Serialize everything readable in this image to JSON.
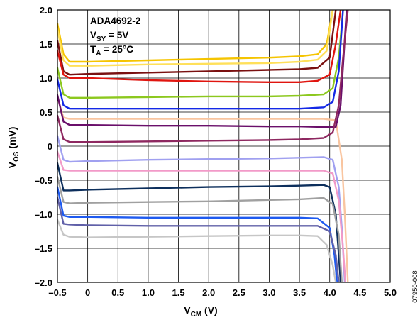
{
  "chart_data": {
    "type": "line",
    "legend_box": {
      "part": "ADA4692-2",
      "supply_main": "V",
      "supply_sub": "SY",
      "supply_value": " = 5V",
      "temp_main": "T",
      "temp_sub": "A",
      "temp_value": " = 25°C"
    },
    "xlabel": {
      "main": "V",
      "sub": "CM",
      "unit": " (V)"
    },
    "ylabel": {
      "main": "V",
      "sub": "OS",
      "unit": " (mV)"
    },
    "xlim": [
      -0.5,
      5.0
    ],
    "ylim": [
      -2.0,
      2.0
    ],
    "x_ticks": [
      "–0.5",
      "0",
      "0.5",
      "1.0",
      "1.5",
      "2.0",
      "2.5",
      "3.0",
      "3.5",
      "4.0",
      "4.5",
      "5.0"
    ],
    "y_ticks": [
      "2.0",
      "1.5",
      "1.0",
      "0.5",
      "0",
      "–0.5",
      "–1.0",
      "–1.5",
      "–2.0"
    ],
    "grid": true,
    "figure_id": "07950-008",
    "series": [
      {
        "color": "#f5c400",
        "points": [
          [
            -0.5,
            1.8
          ],
          [
            -0.4,
            1.35
          ],
          [
            -0.3,
            1.24
          ],
          [
            0,
            1.24
          ],
          [
            1,
            1.26
          ],
          [
            2,
            1.28
          ],
          [
            3,
            1.3
          ],
          [
            3.5,
            1.32
          ],
          [
            3.8,
            1.35
          ],
          [
            3.95,
            1.5
          ],
          [
            4.05,
            2.0
          ]
        ]
      },
      {
        "color": "#ffe05a",
        "points": [
          [
            -0.5,
            1.72
          ],
          [
            -0.4,
            1.26
          ],
          [
            -0.3,
            1.18
          ],
          [
            0,
            1.18
          ],
          [
            1,
            1.2
          ],
          [
            2,
            1.21
          ],
          [
            3,
            1.22
          ],
          [
            3.5,
            1.24
          ],
          [
            3.8,
            1.27
          ],
          [
            3.95,
            1.4
          ],
          [
            4.05,
            2.0
          ]
        ]
      },
      {
        "color": "#7a1010",
        "points": [
          [
            -0.5,
            1.55
          ],
          [
            -0.4,
            1.1
          ],
          [
            -0.3,
            1.05
          ],
          [
            0,
            1.06
          ],
          [
            1,
            1.08
          ],
          [
            2,
            1.1
          ],
          [
            3,
            1.12
          ],
          [
            3.5,
            1.13
          ],
          [
            3.8,
            1.15
          ],
          [
            4.0,
            1.3
          ],
          [
            4.1,
            2.0
          ]
        ]
      },
      {
        "color": "#e0150f",
        "points": [
          [
            -0.5,
            1.4
          ],
          [
            -0.4,
            1.05
          ],
          [
            -0.3,
            1.0
          ],
          [
            0,
            1.0
          ],
          [
            1,
            0.97
          ],
          [
            2,
            0.95
          ],
          [
            3,
            0.94
          ],
          [
            3.5,
            0.94
          ],
          [
            3.8,
            0.96
          ],
          [
            4.0,
            1.05
          ],
          [
            4.1,
            1.5
          ],
          [
            4.18,
            2.0
          ]
        ]
      },
      {
        "color": "#8cc81e",
        "points": [
          [
            -0.5,
            1.15
          ],
          [
            -0.4,
            0.76
          ],
          [
            -0.3,
            0.71
          ],
          [
            0,
            0.71
          ],
          [
            1,
            0.72
          ],
          [
            2,
            0.73
          ],
          [
            3,
            0.73
          ],
          [
            3.5,
            0.74
          ],
          [
            3.9,
            0.76
          ],
          [
            4.05,
            0.85
          ],
          [
            4.15,
            1.3
          ],
          [
            4.22,
            2.0
          ]
        ]
      },
      {
        "color": "#1429e6",
        "points": [
          [
            -0.5,
            0.98
          ],
          [
            -0.4,
            0.6
          ],
          [
            -0.3,
            0.55
          ],
          [
            0,
            0.55
          ],
          [
            1,
            0.55
          ],
          [
            2,
            0.55
          ],
          [
            3,
            0.55
          ],
          [
            3.5,
            0.55
          ],
          [
            3.9,
            0.57
          ],
          [
            4.05,
            0.65
          ],
          [
            4.15,
            1.1
          ],
          [
            4.22,
            2.0
          ]
        ]
      },
      {
        "color": "#f9c5a0",
        "points": [
          [
            -0.5,
            0.72
          ],
          [
            -0.4,
            0.42
          ],
          [
            -0.3,
            0.4
          ],
          [
            0,
            0.4
          ],
          [
            1,
            0.4
          ],
          [
            2,
            0.4
          ],
          [
            3,
            0.4
          ],
          [
            3.5,
            0.4
          ],
          [
            3.9,
            0.4
          ],
          [
            4.1,
            0.38
          ],
          [
            4.2,
            -0.2
          ],
          [
            4.25,
            -1.0
          ],
          [
            4.3,
            -2.0
          ]
        ]
      },
      {
        "color": "#6a0f6a",
        "points": [
          [
            -0.5,
            0.75
          ],
          [
            -0.4,
            0.36
          ],
          [
            -0.3,
            0.31
          ],
          [
            0,
            0.31
          ],
          [
            1,
            0.3
          ],
          [
            2,
            0.3
          ],
          [
            3,
            0.29
          ],
          [
            3.5,
            0.29
          ],
          [
            3.9,
            0.28
          ],
          [
            4.1,
            0.28
          ],
          [
            4.18,
            0.6
          ],
          [
            4.23,
            1.3
          ],
          [
            4.28,
            2.0
          ]
        ]
      },
      {
        "color": "#8e2860",
        "points": [
          [
            -0.5,
            0.45
          ],
          [
            -0.4,
            0.1
          ],
          [
            -0.3,
            0.06
          ],
          [
            0,
            0.06
          ],
          [
            1,
            0.07
          ],
          [
            2,
            0.08
          ],
          [
            3,
            0.09
          ],
          [
            3.5,
            0.1
          ],
          [
            3.9,
            0.12
          ],
          [
            4.05,
            0.2
          ],
          [
            4.15,
            0.6
          ],
          [
            4.22,
            1.3
          ],
          [
            4.3,
            2.0
          ]
        ]
      },
      {
        "color": "#a0a0f0",
        "points": [
          [
            -0.5,
            0.15
          ],
          [
            -0.4,
            -0.2
          ],
          [
            -0.3,
            -0.23
          ],
          [
            0,
            -0.22
          ],
          [
            1,
            -0.2
          ],
          [
            2,
            -0.19
          ],
          [
            3,
            -0.18
          ],
          [
            3.5,
            -0.17
          ],
          [
            3.9,
            -0.16
          ],
          [
            4.05,
            -0.2
          ],
          [
            4.15,
            -0.6
          ],
          [
            4.2,
            -1.2
          ],
          [
            4.25,
            -2.0
          ]
        ]
      },
      {
        "color": "#f29ac8",
        "points": [
          [
            -0.5,
            -0.08
          ],
          [
            -0.4,
            -0.35
          ],
          [
            -0.3,
            -0.36
          ],
          [
            0,
            -0.36
          ],
          [
            1,
            -0.36
          ],
          [
            2,
            -0.36
          ],
          [
            3,
            -0.36
          ],
          [
            3.5,
            -0.36
          ],
          [
            3.9,
            -0.36
          ],
          [
            4.05,
            -0.4
          ],
          [
            4.15,
            -0.8
          ],
          [
            4.22,
            -1.5
          ],
          [
            4.26,
            -2.0
          ]
        ]
      },
      {
        "color": "#0d2f5c",
        "points": [
          [
            -0.5,
            -0.25
          ],
          [
            -0.4,
            -0.65
          ],
          [
            -0.3,
            -0.65
          ],
          [
            0,
            -0.64
          ],
          [
            1,
            -0.62
          ],
          [
            2,
            -0.6
          ],
          [
            3,
            -0.59
          ],
          [
            3.5,
            -0.58
          ],
          [
            3.9,
            -0.57
          ],
          [
            4.0,
            -0.6
          ],
          [
            4.1,
            -1.0
          ],
          [
            4.15,
            -1.6
          ],
          [
            4.18,
            -2.0
          ]
        ]
      },
      {
        "color": "#a0a0a0",
        "points": [
          [
            -0.5,
            -0.45
          ],
          [
            -0.4,
            -0.82
          ],
          [
            -0.3,
            -0.84
          ],
          [
            0,
            -0.83
          ],
          [
            1,
            -0.82
          ],
          [
            2,
            -0.81
          ],
          [
            3,
            -0.79
          ],
          [
            3.5,
            -0.78
          ],
          [
            3.9,
            -0.76
          ],
          [
            4.05,
            -0.85
          ],
          [
            4.15,
            -1.3
          ],
          [
            4.2,
            -2.0
          ]
        ]
      },
      {
        "color": "#1e5af0",
        "points": [
          [
            -0.5,
            -0.6
          ],
          [
            -0.4,
            -1.02
          ],
          [
            -0.3,
            -1.04
          ],
          [
            0,
            -1.04
          ],
          [
            1,
            -1.05
          ],
          [
            2,
            -1.05
          ],
          [
            3,
            -1.05
          ],
          [
            3.5,
            -1.05
          ],
          [
            3.8,
            -1.06
          ],
          [
            4.0,
            -1.2
          ],
          [
            4.08,
            -1.6
          ],
          [
            4.12,
            -2.0
          ]
        ]
      },
      {
        "color": "#6060a8",
        "points": [
          [
            -0.5,
            -0.75
          ],
          [
            -0.4,
            -1.14
          ],
          [
            -0.3,
            -1.15
          ],
          [
            0,
            -1.16
          ],
          [
            1,
            -1.17
          ],
          [
            2,
            -1.17
          ],
          [
            3,
            -1.17
          ],
          [
            3.5,
            -1.17
          ],
          [
            3.8,
            -1.17
          ],
          [
            4.0,
            -1.25
          ],
          [
            4.1,
            -1.6
          ],
          [
            4.15,
            -2.0
          ]
        ]
      },
      {
        "color": "#c6c6c6",
        "points": [
          [
            -0.5,
            -1.08
          ],
          [
            -0.4,
            -1.3
          ],
          [
            -0.3,
            -1.33
          ],
          [
            0,
            -1.34
          ],
          [
            1,
            -1.33
          ],
          [
            2,
            -1.32
          ],
          [
            3,
            -1.31
          ],
          [
            3.5,
            -1.31
          ],
          [
            3.8,
            -1.32
          ],
          [
            3.95,
            -1.45
          ],
          [
            4.05,
            -1.75
          ],
          [
            4.1,
            -2.0
          ]
        ]
      }
    ]
  }
}
